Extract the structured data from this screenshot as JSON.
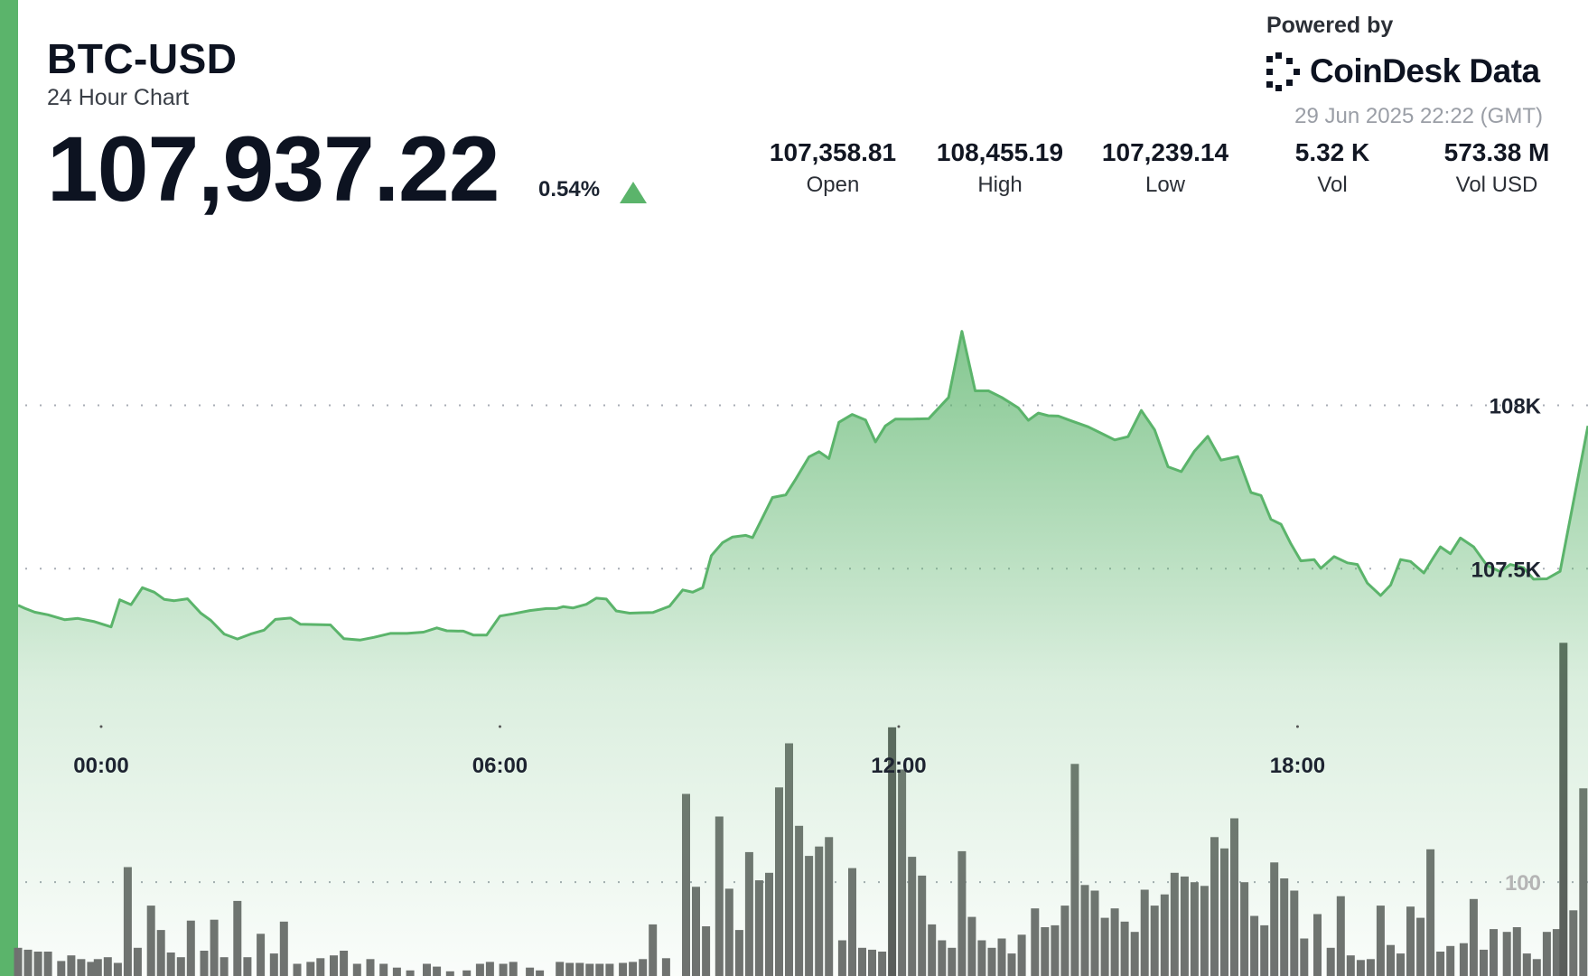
{
  "header": {
    "symbol": "BTC-USD",
    "subtitle": "24 Hour Chart",
    "price": "107,937.22",
    "change_pct": "0.54%",
    "change_direction": "up",
    "change_icon": "triangle-up-icon"
  },
  "brand": {
    "powered_by": "Powered by",
    "name": "CoinDesk Data",
    "logo_icon": "coindesk-logo-icon",
    "timestamp": "29 Jun 2025 22:22 (GMT)"
  },
  "stats": [
    {
      "value": "107,358.81",
      "label": "Open"
    },
    {
      "value": "108,455.19",
      "label": "High"
    },
    {
      "value": "107,239.14",
      "label": "Low"
    },
    {
      "value": "5.32 K",
      "label": "Vol"
    },
    {
      "value": "573.38 M",
      "label": "Vol USD"
    }
  ],
  "colors": {
    "accent": "#5bb46b",
    "price_line": "#5bb46b",
    "volume_bar": "#707070",
    "text": "#0d1321"
  },
  "chart_data": {
    "type": "area",
    "title": "",
    "xlabel": "",
    "ylabel": "",
    "x_tick_labels": [
      "00:00",
      "06:00",
      "12:00",
      "18:00"
    ],
    "x_tick_hours": [
      0,
      6,
      12,
      18
    ],
    "x_range_hours": [
      -1.25,
      22.37
    ],
    "y_tick_labels": [
      "108K",
      "107.5K"
    ],
    "y_tick_values": [
      108000,
      107500
    ],
    "ylim": [
      107111,
      108604
    ],
    "volume_tick_labels": [
      "100"
    ],
    "volume_tick_values": [
      100
    ],
    "volume_ylim": [
      0,
      208
    ],
    "grid": true,
    "series": [
      {
        "values": [
          [
            -1.25,
            107388
          ],
          [
            -1.15,
            107379
          ],
          [
            -1.0,
            107367
          ],
          [
            -0.8,
            107359
          ],
          [
            -0.55,
            107344
          ],
          [
            -0.35,
            107348
          ],
          [
            -0.1,
            107338
          ],
          [
            0.15,
            107322
          ],
          [
            0.28,
            107405
          ],
          [
            0.45,
            107390
          ],
          [
            0.62,
            107442
          ],
          [
            0.8,
            107428
          ],
          [
            0.95,
            107406
          ],
          [
            1.1,
            107402
          ],
          [
            1.3,
            107408
          ],
          [
            1.5,
            107364
          ],
          [
            1.65,
            107342
          ],
          [
            1.85,
            107300
          ],
          [
            2.05,
            107285
          ],
          [
            2.25,
            107300
          ],
          [
            2.45,
            107312
          ],
          [
            2.62,
            107345
          ],
          [
            2.85,
            107349
          ],
          [
            3.0,
            107330
          ],
          [
            3.3,
            107329
          ],
          [
            3.45,
            107328
          ],
          [
            3.65,
            107286
          ],
          [
            3.9,
            107282
          ],
          [
            4.1,
            107290
          ],
          [
            4.35,
            107302
          ],
          [
            4.6,
            107302
          ],
          [
            4.85,
            107306
          ],
          [
            5.05,
            107319
          ],
          [
            5.2,
            107310
          ],
          [
            5.45,
            107309
          ],
          [
            5.6,
            107297
          ],
          [
            5.8,
            107297
          ],
          [
            6.0,
            107355
          ],
          [
            6.2,
            107362
          ],
          [
            6.45,
            107372
          ],
          [
            6.7,
            107378
          ],
          [
            6.85,
            107378
          ],
          [
            6.95,
            107384
          ],
          [
            7.1,
            107380
          ],
          [
            7.3,
            107391
          ],
          [
            7.45,
            107410
          ],
          [
            7.6,
            107407
          ],
          [
            7.75,
            107371
          ],
          [
            7.95,
            107364
          ],
          [
            8.1,
            107365
          ],
          [
            8.3,
            107366
          ],
          [
            8.55,
            107385
          ],
          [
            8.75,
            107435
          ],
          [
            8.9,
            107428
          ],
          [
            9.05,
            107442
          ],
          [
            9.18,
            107540
          ],
          [
            9.35,
            107580
          ],
          [
            9.5,
            107597
          ],
          [
            9.7,
            107602
          ],
          [
            9.8,
            107595
          ],
          [
            9.95,
            107656
          ],
          [
            10.1,
            107718
          ],
          [
            10.3,
            107726
          ],
          [
            10.45,
            107774
          ],
          [
            10.65,
            107842
          ],
          [
            10.8,
            107858
          ],
          [
            10.95,
            107837
          ],
          [
            11.1,
            107948
          ],
          [
            11.3,
            107972
          ],
          [
            11.5,
            107955
          ],
          [
            11.65,
            107888
          ],
          [
            11.8,
            107937
          ],
          [
            11.95,
            107958
          ],
          [
            12.2,
            107958
          ],
          [
            12.45,
            107959
          ],
          [
            12.75,
            108024
          ],
          [
            12.95,
            108226
          ],
          [
            13.15,
            108044
          ],
          [
            13.35,
            108044
          ],
          [
            13.55,
            108024
          ],
          [
            13.8,
            107992
          ],
          [
            13.95,
            107954
          ],
          [
            14.1,
            107976
          ],
          [
            14.25,
            107968
          ],
          [
            14.4,
            107967
          ],
          [
            14.6,
            107952
          ],
          [
            14.85,
            107934
          ],
          [
            15.1,
            107909
          ],
          [
            15.25,
            107894
          ],
          [
            15.45,
            107904
          ],
          [
            15.65,
            107984
          ],
          [
            15.85,
            107925
          ],
          [
            16.05,
            107812
          ],
          [
            16.25,
            107797
          ],
          [
            16.45,
            107860
          ],
          [
            16.65,
            107905
          ],
          [
            16.85,
            107832
          ],
          [
            17.1,
            107843
          ],
          [
            17.3,
            107733
          ],
          [
            17.45,
            107724
          ],
          [
            17.6,
            107651
          ],
          [
            17.75,
            107636
          ],
          [
            17.9,
            107576
          ],
          [
            18.05,
            107524
          ],
          [
            18.25,
            107528
          ],
          [
            18.35,
            107501
          ],
          [
            18.55,
            107537
          ],
          [
            18.75,
            107518
          ],
          [
            18.9,
            107513
          ],
          [
            19.05,
            107456
          ],
          [
            19.25,
            107418
          ],
          [
            19.4,
            107450
          ],
          [
            19.55,
            107528
          ],
          [
            19.7,
            107522
          ],
          [
            19.9,
            107487
          ],
          [
            20.05,
            107536
          ],
          [
            20.15,
            107567
          ],
          [
            20.3,
            107546
          ],
          [
            20.45,
            107594
          ],
          [
            20.65,
            107567
          ],
          [
            20.85,
            107510
          ],
          [
            21.05,
            107491
          ],
          [
            21.2,
            107513
          ],
          [
            21.4,
            107503
          ],
          [
            21.55,
            107468
          ],
          [
            21.75,
            107469
          ],
          [
            21.95,
            107492
          ],
          [
            22.37,
            107937
          ]
        ]
      }
    ],
    "volume": [
      {
        "x": -1.25,
        "v": 30
      },
      {
        "x": -1.1,
        "v": 28
      },
      {
        "x": -0.95,
        "v": 26
      },
      {
        "x": -0.8,
        "v": 26
      },
      {
        "x": -0.6,
        "v": 16
      },
      {
        "x": -0.45,
        "v": 22
      },
      {
        "x": -0.3,
        "v": 18
      },
      {
        "x": -0.15,
        "v": 15
      },
      {
        "x": -0.05,
        "v": 18
      },
      {
        "x": 0.1,
        "v": 20
      },
      {
        "x": 0.25,
        "v": 14
      },
      {
        "x": 0.4,
        "v": 116
      },
      {
        "x": 0.55,
        "v": 30
      },
      {
        "x": 0.75,
        "v": 75
      },
      {
        "x": 0.9,
        "v": 49
      },
      {
        "x": 1.05,
        "v": 25
      },
      {
        "x": 1.2,
        "v": 20
      },
      {
        "x": 1.35,
        "v": 59
      },
      {
        "x": 1.55,
        "v": 27
      },
      {
        "x": 1.7,
        "v": 60
      },
      {
        "x": 1.85,
        "v": 20
      },
      {
        "x": 2.05,
        "v": 80
      },
      {
        "x": 2.2,
        "v": 20
      },
      {
        "x": 2.4,
        "v": 45
      },
      {
        "x": 2.6,
        "v": 24
      },
      {
        "x": 2.75,
        "v": 58
      },
      {
        "x": 2.95,
        "v": 13
      },
      {
        "x": 3.15,
        "v": 15
      },
      {
        "x": 3.3,
        "v": 19
      },
      {
        "x": 3.5,
        "v": 22
      },
      {
        "x": 3.65,
        "v": 27
      },
      {
        "x": 3.85,
        "v": 13
      },
      {
        "x": 4.05,
        "v": 18
      },
      {
        "x": 4.25,
        "v": 13
      },
      {
        "x": 4.45,
        "v": 9
      },
      {
        "x": 4.65,
        "v": 6
      },
      {
        "x": 4.9,
        "v": 13
      },
      {
        "x": 5.05,
        "v": 10
      },
      {
        "x": 5.25,
        "v": 5
      },
      {
        "x": 5.5,
        "v": 6
      },
      {
        "x": 5.7,
        "v": 13
      },
      {
        "x": 5.85,
        "v": 15
      },
      {
        "x": 6.05,
        "v": 13
      },
      {
        "x": 6.2,
        "v": 15
      },
      {
        "x": 6.45,
        "v": 9
      },
      {
        "x": 6.6,
        "v": 6
      },
      {
        "x": 6.9,
        "v": 15
      },
      {
        "x": 7.05,
        "v": 14
      },
      {
        "x": 7.2,
        "v": 14
      },
      {
        "x": 7.35,
        "v": 13
      },
      {
        "x": 7.5,
        "v": 13
      },
      {
        "x": 7.65,
        "v": 13
      },
      {
        "x": 7.85,
        "v": 14
      },
      {
        "x": 8.0,
        "v": 15
      },
      {
        "x": 8.15,
        "v": 18
      },
      {
        "x": 8.3,
        "v": 55
      },
      {
        "x": 8.5,
        "v": 19
      },
      {
        "x": 8.8,
        "v": 194
      },
      {
        "x": 8.95,
        "v": 95
      },
      {
        "x": 9.1,
        "v": 53
      },
      {
        "x": 9.3,
        "v": 170
      },
      {
        "x": 9.45,
        "v": 93
      },
      {
        "x": 9.6,
        "v": 49
      },
      {
        "x": 9.75,
        "v": 132
      },
      {
        "x": 9.9,
        "v": 102
      },
      {
        "x": 10.05,
        "v": 110
      },
      {
        "x": 10.2,
        "v": 201
      },
      {
        "x": 10.35,
        "v": 248
      },
      {
        "x": 10.5,
        "v": 160
      },
      {
        "x": 10.65,
        "v": 128
      },
      {
        "x": 10.8,
        "v": 138
      },
      {
        "x": 10.95,
        "v": 148
      },
      {
        "x": 11.15,
        "v": 38
      },
      {
        "x": 11.3,
        "v": 115
      },
      {
        "x": 11.45,
        "v": 30
      },
      {
        "x": 11.6,
        "v": 28
      },
      {
        "x": 11.75,
        "v": 26
      },
      {
        "x": 11.9,
        "v": 265
      },
      {
        "x": 12.05,
        "v": 220
      },
      {
        "x": 12.2,
        "v": 127
      },
      {
        "x": 12.35,
        "v": 107
      },
      {
        "x": 12.5,
        "v": 55
      },
      {
        "x": 12.65,
        "v": 38
      },
      {
        "x": 12.8,
        "v": 30
      },
      {
        "x": 12.95,
        "v": 133
      },
      {
        "x": 13.1,
        "v": 63
      },
      {
        "x": 13.25,
        "v": 38
      },
      {
        "x": 13.4,
        "v": 30
      },
      {
        "x": 13.55,
        "v": 40
      },
      {
        "x": 13.7,
        "v": 24
      },
      {
        "x": 13.85,
        "v": 44
      },
      {
        "x": 14.05,
        "v": 72
      },
      {
        "x": 14.2,
        "v": 52
      },
      {
        "x": 14.35,
        "v": 54
      },
      {
        "x": 14.5,
        "v": 75
      },
      {
        "x": 14.65,
        "v": 226
      },
      {
        "x": 14.8,
        "v": 97
      },
      {
        "x": 14.95,
        "v": 91
      },
      {
        "x": 15.1,
        "v": 62
      },
      {
        "x": 15.25,
        "v": 72
      },
      {
        "x": 15.4,
        "v": 58
      },
      {
        "x": 15.55,
        "v": 47
      },
      {
        "x": 15.7,
        "v": 92
      },
      {
        "x": 15.85,
        "v": 75
      },
      {
        "x": 16.0,
        "v": 87
      },
      {
        "x": 16.15,
        "v": 110
      },
      {
        "x": 16.3,
        "v": 106
      },
      {
        "x": 16.45,
        "v": 100
      },
      {
        "x": 16.6,
        "v": 96
      },
      {
        "x": 16.75,
        "v": 148
      },
      {
        "x": 16.9,
        "v": 136
      },
      {
        "x": 17.05,
        "v": 168
      },
      {
        "x": 17.2,
        "v": 100
      },
      {
        "x": 17.35,
        "v": 64
      },
      {
        "x": 17.5,
        "v": 54
      },
      {
        "x": 17.65,
        "v": 121
      },
      {
        "x": 17.8,
        "v": 104
      },
      {
        "x": 17.95,
        "v": 91
      },
      {
        "x": 18.1,
        "v": 40
      },
      {
        "x": 18.3,
        "v": 66
      },
      {
        "x": 18.5,
        "v": 30
      },
      {
        "x": 18.65,
        "v": 85
      },
      {
        "x": 18.8,
        "v": 22
      },
      {
        "x": 18.95,
        "v": 17
      },
      {
        "x": 19.1,
        "v": 18
      },
      {
        "x": 19.25,
        "v": 75
      },
      {
        "x": 19.4,
        "v": 33
      },
      {
        "x": 19.55,
        "v": 24
      },
      {
        "x": 19.7,
        "v": 74
      },
      {
        "x": 19.85,
        "v": 62
      },
      {
        "x": 20.0,
        "v": 135
      },
      {
        "x": 20.15,
        "v": 26
      },
      {
        "x": 20.3,
        "v": 32
      },
      {
        "x": 20.5,
        "v": 35
      },
      {
        "x": 20.65,
        "v": 82
      },
      {
        "x": 20.8,
        "v": 28
      },
      {
        "x": 20.95,
        "v": 50
      },
      {
        "x": 21.15,
        "v": 47
      },
      {
        "x": 21.3,
        "v": 52
      },
      {
        "x": 21.45,
        "v": 24
      },
      {
        "x": 21.6,
        "v": 18
      },
      {
        "x": 21.75,
        "v": 47
      },
      {
        "x": 21.9,
        "v": 50
      },
      {
        "x": 22.0,
        "v": 355
      },
      {
        "x": 22.15,
        "v": 70
      },
      {
        "x": 22.3,
        "v": 200
      }
    ]
  }
}
